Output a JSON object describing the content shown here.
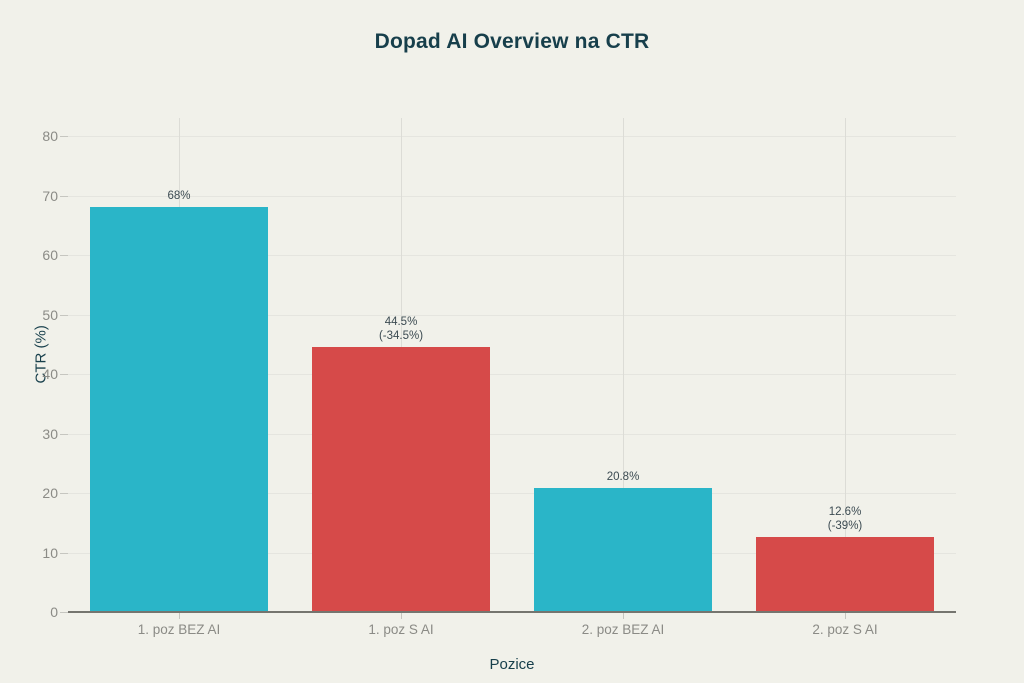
{
  "title": "Dopad AI Overview na CTR",
  "axes": {
    "x_title": "Pozice",
    "y_title": "CTR (%)"
  },
  "colors": {
    "background": "#F1F1EA",
    "bar_cyan": "#2AB5C8",
    "bar_red": "#D64A49",
    "title_text": "#173F4B",
    "tick_text": "#8B8B86",
    "annotation_text": "#3C4B52",
    "grid_horizontal": "#E5E5DF",
    "grid_vertical": "#DCDCD6",
    "baseline": "#75756F"
  },
  "chart_data": {
    "type": "bar",
    "title": "Dopad AI Overview na CTR",
    "xlabel": "Pozice",
    "ylabel": "CTR (%)",
    "categories": [
      "1. poz BEZ AI",
      "1. poz S AI",
      "2. poz BEZ AI",
      "2. poz S AI"
    ],
    "values": [
      68,
      44.5,
      20.8,
      12.6
    ],
    "bar_colors": [
      "#2AB5C8",
      "#D64A49",
      "#2AB5C8",
      "#D64A49"
    ],
    "bar_labels": [
      [
        "68%"
      ],
      [
        "44.5%",
        "(-34.5%)"
      ],
      [
        "20.8%"
      ],
      [
        "12.6%",
        "(-39%)"
      ]
    ],
    "ylim": [
      0,
      80
    ],
    "ytick_step": 10,
    "grid": true,
    "legend": "none"
  }
}
